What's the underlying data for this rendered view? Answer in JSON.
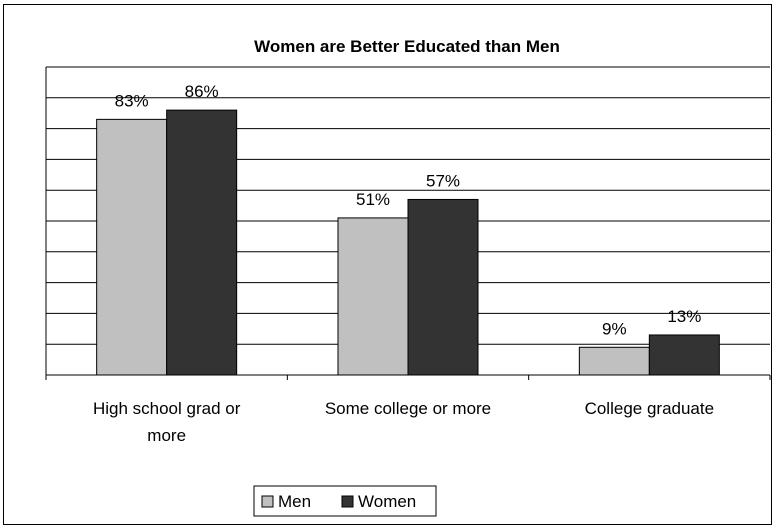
{
  "chart_data": {
    "type": "bar",
    "title": "Women are Better Educated than Men",
    "categories": [
      [
        "High school grad or",
        "more"
      ],
      [
        "Some college or more"
      ],
      [
        "College graduate"
      ]
    ],
    "series": [
      {
        "name": "Men",
        "values": [
          83,
          51,
          9
        ],
        "labels": [
          "83%",
          "51%",
          "9%"
        ],
        "color": "#c0c0c0"
      },
      {
        "name": "Women",
        "values": [
          86,
          57,
          13
        ],
        "labels": [
          "86%",
          "57%",
          "13%"
        ],
        "color": "#333333"
      }
    ],
    "ylim": [
      0,
      100
    ],
    "grid": true,
    "legend": "bottom"
  }
}
